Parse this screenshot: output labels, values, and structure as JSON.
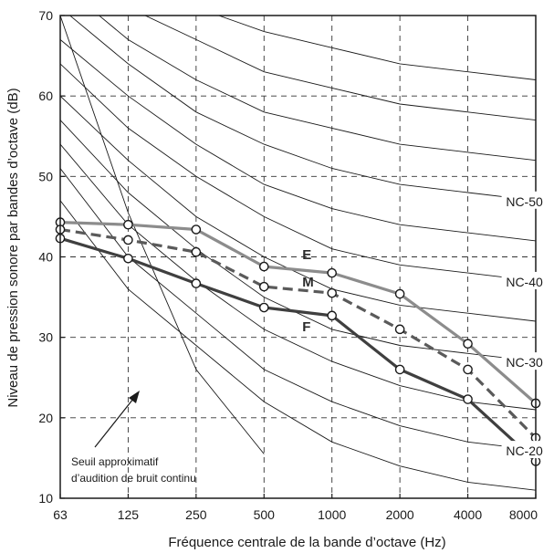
{
  "chart_data": {
    "type": "line",
    "xlabel": "Fréquence centrale de la bande d’octave (Hz)",
    "ylabel": "Niveau de pression sonore par bandes d’octave (dB)",
    "x_scale": "log2",
    "categories": [
      "63",
      "125",
      "250",
      "500",
      "1000",
      "2000",
      "4000",
      "8000"
    ],
    "ylim": [
      10,
      70
    ],
    "yticks": [
      10,
      20,
      30,
      40,
      50,
      60,
      70
    ],
    "grid": true,
    "grid_style": "dashed",
    "nc_curves": [
      {
        "level": 15,
        "values": [
          47,
          36,
          29,
          22,
          17,
          14,
          12,
          11
        ]
      },
      {
        "level": 20,
        "values": [
          51,
          40,
          33,
          26,
          22,
          19,
          17,
          16
        ]
      },
      {
        "level": 25,
        "values": [
          54,
          44,
          37,
          31,
          27,
          24,
          22,
          21
        ]
      },
      {
        "level": 30,
        "values": [
          57,
          48,
          41,
          35,
          31,
          29,
          28,
          27
        ]
      },
      {
        "level": 35,
        "values": [
          60,
          52,
          45,
          40,
          36,
          34,
          33,
          32
        ]
      },
      {
        "level": 40,
        "values": [
          64,
          56,
          50,
          45,
          41,
          39,
          38,
          37
        ]
      },
      {
        "level": 45,
        "values": [
          67,
          60,
          54,
          49,
          46,
          44,
          43,
          42
        ]
      },
      {
        "level": 50,
        "values": [
          71,
          64,
          58,
          54,
          51,
          49,
          48,
          47
        ]
      },
      {
        "level": 55,
        "values": [
          74,
          67,
          62,
          58,
          56,
          54,
          53,
          52
        ]
      },
      {
        "level": 60,
        "values": [
          77,
          71,
          67,
          63,
          61,
          59,
          58,
          57
        ]
      },
      {
        "level": 65,
        "values": [
          80,
          75,
          71,
          68,
          66,
          64,
          63,
          62
        ]
      }
    ],
    "curve_labels": [
      {
        "text": "NC-50",
        "level": 50
      },
      {
        "text": "NC-40",
        "level": 40
      },
      {
        "text": "NC-30",
        "level": 30
      },
      {
        "text": "NC-20",
        "level": 20
      }
    ],
    "series": [
      {
        "name": "E",
        "color": "#8c8c8c",
        "style": "solid",
        "values": [
          44.3,
          44.0,
          43.4,
          38.8,
          38.0,
          35.4,
          29.2,
          21.8
        ]
      },
      {
        "name": "M",
        "color": "#5a5a5a",
        "style": "dashed",
        "values": [
          43.4,
          42.1,
          40.6,
          36.3,
          35.5,
          31.0,
          26.0,
          17.5
        ]
      },
      {
        "name": "F",
        "color": "#3f3f3f",
        "style": "solid",
        "values": [
          42.3,
          39.8,
          36.7,
          33.7,
          32.7,
          26.0,
          22.3,
          14.6
        ]
      }
    ],
    "threshold_curve": {
      "values": [
        70,
        45.5,
        26,
        15.5
      ]
    },
    "annotation": {
      "lines": [
        "Seuil approximatif",
        "d’audition de bruit continu"
      ]
    }
  }
}
